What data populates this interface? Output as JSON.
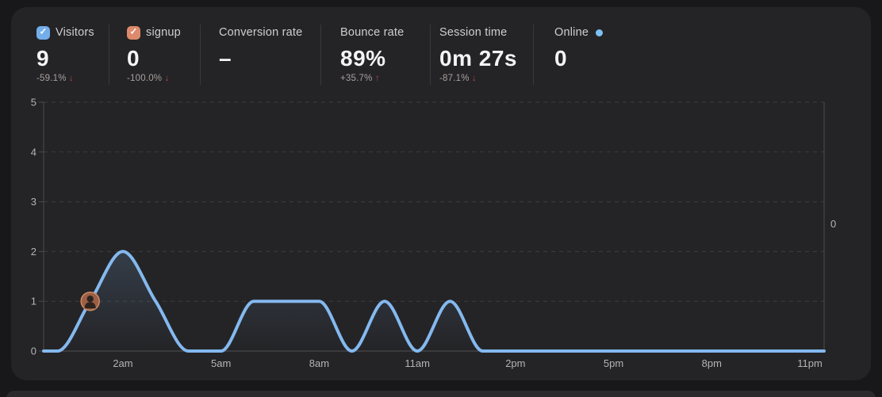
{
  "icons": {
    "check": "✓",
    "arrow_down": "↓",
    "arrow_up": "↑",
    "online_dot": "●"
  },
  "colors": {
    "background": "#18181a",
    "card": "#242427",
    "line": "#84b9ef",
    "visitors_checkbox": "#74aeea",
    "signup_checkbox": "#dd8a6c",
    "online_dot": "#7cc0f5",
    "delta_red": "#b5453f"
  },
  "stats": [
    {
      "label": "Visitors",
      "value": "9",
      "delta": "-59.1%",
      "arrow": "↓",
      "checkbox_color": "#74aeea"
    },
    {
      "label": "signup",
      "value": "0",
      "delta": "-100.0%",
      "arrow": "↓",
      "checkbox_color": "#dd8a6c"
    },
    {
      "label": "Conversion rate",
      "value": "–"
    },
    {
      "label": "Bounce rate",
      "value": "89%",
      "delta": "+35.7%",
      "arrow": "↑"
    },
    {
      "label": "Session time",
      "value": "0m 27s",
      "delta": "-87.1%",
      "arrow": "↓"
    },
    {
      "label": "Online",
      "value": "0"
    }
  ],
  "chart_data": {
    "type": "area",
    "x_unit": "hour of day",
    "x": [
      0,
      1,
      2,
      3,
      4,
      5,
      6,
      7,
      8,
      9,
      10,
      11,
      12,
      13,
      14,
      15,
      16,
      17,
      18,
      19,
      20,
      21,
      22,
      23
    ],
    "series": [
      {
        "name": "Visitors",
        "color": "#84b9ef",
        "values": [
          0,
          1,
          2,
          1,
          0,
          0,
          1,
          1,
          1,
          0,
          1,
          0,
          1,
          0,
          0,
          0,
          0,
          0,
          0,
          0,
          0,
          0,
          0,
          0
        ]
      }
    ],
    "x_ticks": [
      {
        "h": 2,
        "label": "2am"
      },
      {
        "h": 5,
        "label": "5am"
      },
      {
        "h": 8,
        "label": "8am"
      },
      {
        "h": 11,
        "label": "11am"
      },
      {
        "h": 14,
        "label": "2pm"
      },
      {
        "h": 17,
        "label": "5pm"
      },
      {
        "h": 20,
        "label": "8pm"
      },
      {
        "h": 23,
        "label": "11pm"
      }
    ],
    "y_ticks": [
      "0",
      "1",
      "2",
      "3",
      "4",
      "5"
    ],
    "ylim": [
      0,
      5
    ],
    "grid": "dashed-horizontal",
    "legend": "none",
    "right_axis_label": "0",
    "marker": {
      "h": 1,
      "value": 1,
      "kind": "visitor-avatar"
    }
  }
}
